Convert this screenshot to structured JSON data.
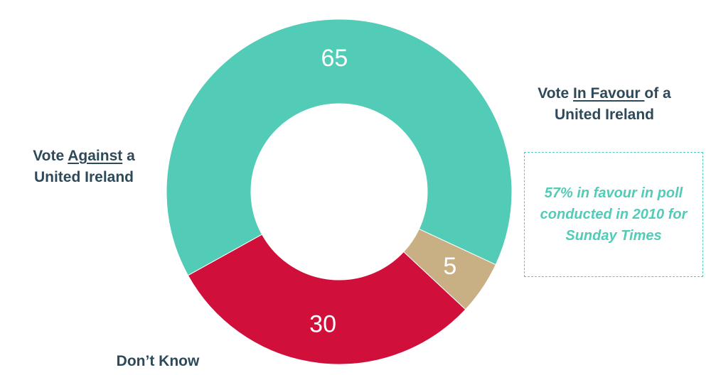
{
  "chart_data": {
    "type": "pie",
    "donut": true,
    "categories": [
      "Vote In Favour of a United Ireland",
      "Don’t Know",
      "Vote Against a United Ireland"
    ],
    "values": [
      65,
      5,
      30
    ],
    "colors": [
      "#52cbb7",
      "#c8b084",
      "#d0103a"
    ],
    "legend": "none"
  },
  "labels": {
    "favour": {
      "pre": "Vote ",
      "emph": "In Favour ",
      "post": "of a",
      "line2": "United Ireland"
    },
    "against": {
      "pre": "Vote ",
      "emph": "Against",
      "post": " a",
      "line2": "United Ireland"
    },
    "dontknow": "Don’t Know"
  },
  "note": "57% in favour in poll conducted in 2010 for Sunday Times"
}
